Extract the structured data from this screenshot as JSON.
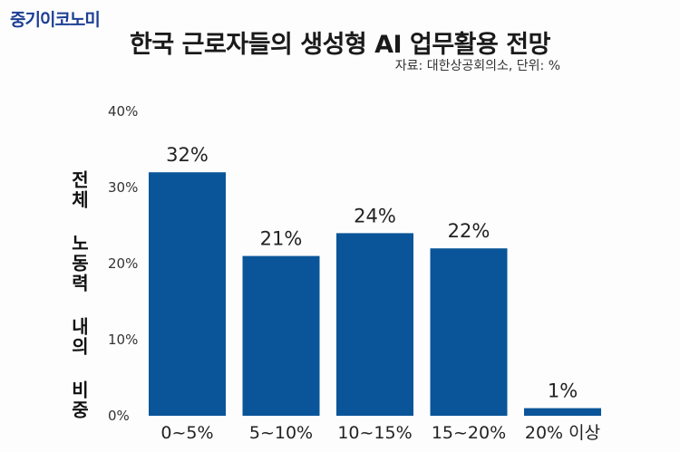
{
  "header": {
    "logo": "중기이코노미",
    "title": "한국 근로자들의 생성형 AI 업무활용 전망",
    "source": "자료: 대한상공회의소, 단위: %"
  },
  "chart_data": {
    "type": "bar",
    "title": "한국 근로자들의 생성형 AI 업무활용 전망",
    "ylabel": "전체 노동력 내의 비중",
    "xlabel": "",
    "categories": [
      "0~5%",
      "5~10%",
      "10~15%",
      "15~20%",
      "20% 이상"
    ],
    "values": [
      32,
      21,
      24,
      22,
      1
    ],
    "data_labels": [
      "32%",
      "21%",
      "24%",
      "22%",
      "1%"
    ],
    "ylim": [
      0,
      40
    ],
    "yticks": [
      0,
      10,
      20,
      30,
      40
    ],
    "ytick_labels": [
      "0%",
      "10%",
      "20%",
      "30%",
      "40%"
    ],
    "grid": false,
    "bar_color": "#0a5599"
  }
}
